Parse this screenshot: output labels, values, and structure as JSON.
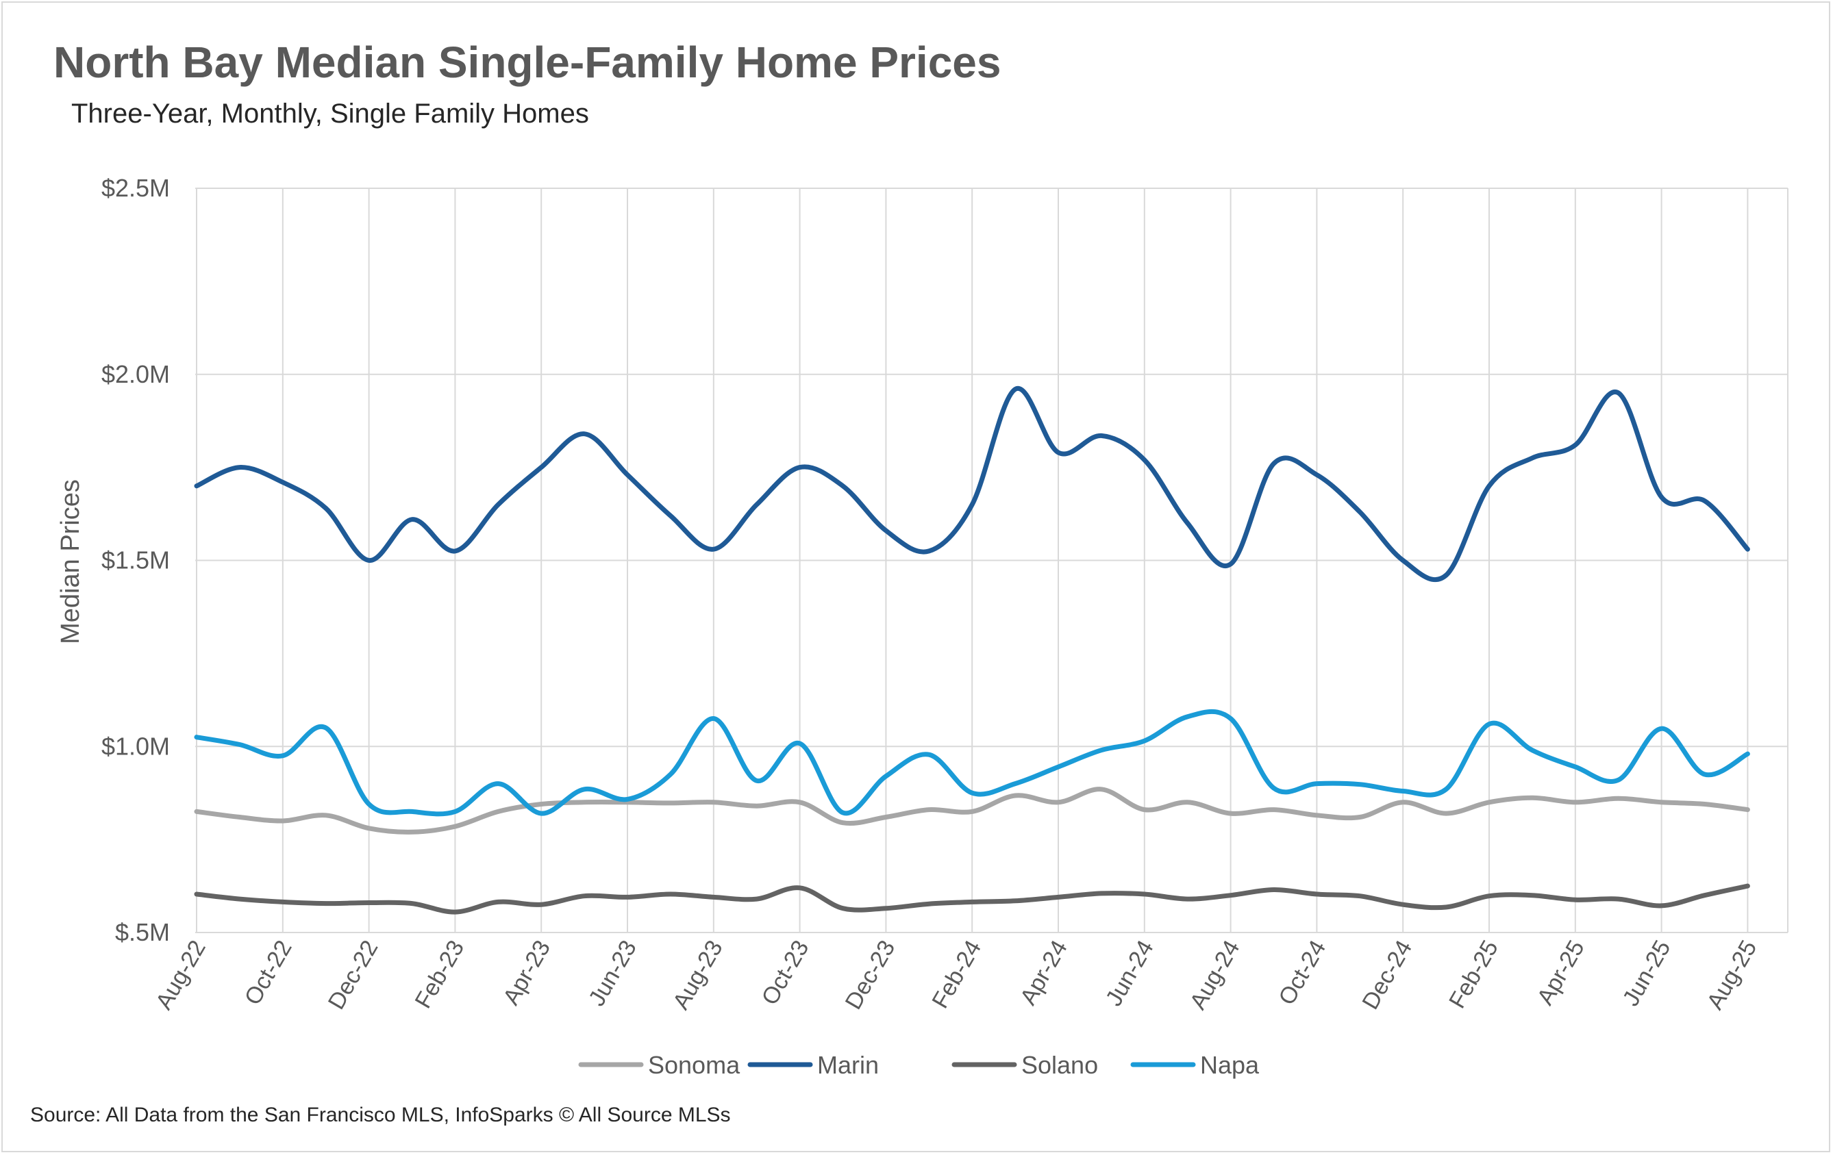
{
  "title": "North Bay Median Single-Family Home Prices",
  "subtitle": "Three-Year, Monthly, Single Family Homes",
  "source": "Source: All Data from the San Francisco MLS, InfoSparks © All Source MLSs",
  "colors": {
    "sonoma": "#a6a6a6",
    "marin": "#1f5a96",
    "solano": "#636363",
    "napa": "#1a9bd7",
    "grid": "#d9d9d9",
    "text": "#595959"
  },
  "chart_data": {
    "type": "line",
    "title": "North Bay Median Single-Family Home Prices",
    "subtitle": "Three-Year, Monthly, Single Family Homes",
    "xlabel": "",
    "ylabel": "Median Prices",
    "ylim": [
      500000,
      2500000
    ],
    "yticks": [
      500000,
      1000000,
      1500000,
      2000000,
      2500000
    ],
    "ytick_labels": [
      "$.5M",
      "$1.0M",
      "$1.5M",
      "$2.0M",
      "$2.5M"
    ],
    "grid": true,
    "legend": "bottom",
    "categories": [
      "Aug-22",
      "Sep-22",
      "Oct-22",
      "Nov-22",
      "Dec-22",
      "Jan-23",
      "Feb-23",
      "Mar-23",
      "Apr-23",
      "May-23",
      "Jun-23",
      "Jul-23",
      "Aug-23",
      "Sep-23",
      "Oct-23",
      "Nov-23",
      "Dec-23",
      "Jan-24",
      "Feb-24",
      "Mar-24",
      "Apr-24",
      "May-24",
      "Jun-24",
      "Jul-24",
      "Aug-24",
      "Sep-24",
      "Oct-24",
      "Nov-24",
      "Dec-24",
      "Jan-25",
      "Feb-25",
      "Mar-25",
      "Apr-25",
      "May-25",
      "Jun-25",
      "Jul-25",
      "Aug-25"
    ],
    "x_tick_labels": [
      "Aug-22",
      "Oct-22",
      "Dec-22",
      "Feb-23",
      "Apr-23",
      "Jun-23",
      "Aug-23",
      "Oct-23",
      "Dec-23",
      "Feb-24",
      "Apr-24",
      "Jun-24",
      "Aug-24",
      "Oct-24",
      "Dec-24",
      "Feb-25",
      "Apr-25",
      "Jun-25",
      "Aug-25"
    ],
    "series": [
      {
        "name": "Sonoma",
        "color": "#a6a6a6",
        "values": [
          825000,
          810000,
          800000,
          815000,
          780000,
          770000,
          785000,
          825000,
          845000,
          850000,
          850000,
          848000,
          850000,
          840000,
          850000,
          795000,
          810000,
          830000,
          825000,
          868000,
          850000,
          885000,
          830000,
          850000,
          820000,
          830000,
          815000,
          810000,
          850000,
          820000,
          850000,
          862000,
          850000,
          860000,
          850000,
          845000,
          830000
        ]
      },
      {
        "name": "Marin",
        "color": "#1f5a96",
        "values": [
          1700000,
          1750000,
          1710000,
          1640000,
          1500000,
          1610000,
          1525000,
          1650000,
          1750000,
          1840000,
          1730000,
          1620000,
          1530000,
          1650000,
          1750000,
          1700000,
          1580000,
          1525000,
          1650000,
          1960000,
          1790000,
          1835000,
          1770000,
          1600000,
          1490000,
          1760000,
          1730000,
          1630000,
          1500000,
          1460000,
          1700000,
          1775000,
          1810000,
          1950000,
          1670000,
          1660000,
          1530000
        ]
      },
      {
        "name": "Solano",
        "color": "#636363",
        "values": [
          603000,
          590000,
          582000,
          578000,
          580000,
          578000,
          555000,
          582000,
          575000,
          598000,
          595000,
          603000,
          595000,
          590000,
          620000,
          565000,
          565000,
          577000,
          582000,
          585000,
          595000,
          605000,
          603000,
          590000,
          600000,
          615000,
          603000,
          598000,
          575000,
          568000,
          598000,
          600000,
          588000,
          590000,
          572000,
          600000,
          625000
        ]
      },
      {
        "name": "Napa",
        "color": "#1a9bd7",
        "values": [
          1025000,
          1005000,
          975000,
          1050000,
          845000,
          825000,
          825000,
          900000,
          820000,
          885000,
          858000,
          925000,
          1075000,
          908000,
          1008000,
          822000,
          920000,
          978000,
          875000,
          900000,
          945000,
          990000,
          1015000,
          1080000,
          1075000,
          888000,
          900000,
          898000,
          880000,
          885000,
          1060000,
          990000,
          945000,
          910000,
          1048000,
          925000,
          980000
        ]
      }
    ]
  }
}
